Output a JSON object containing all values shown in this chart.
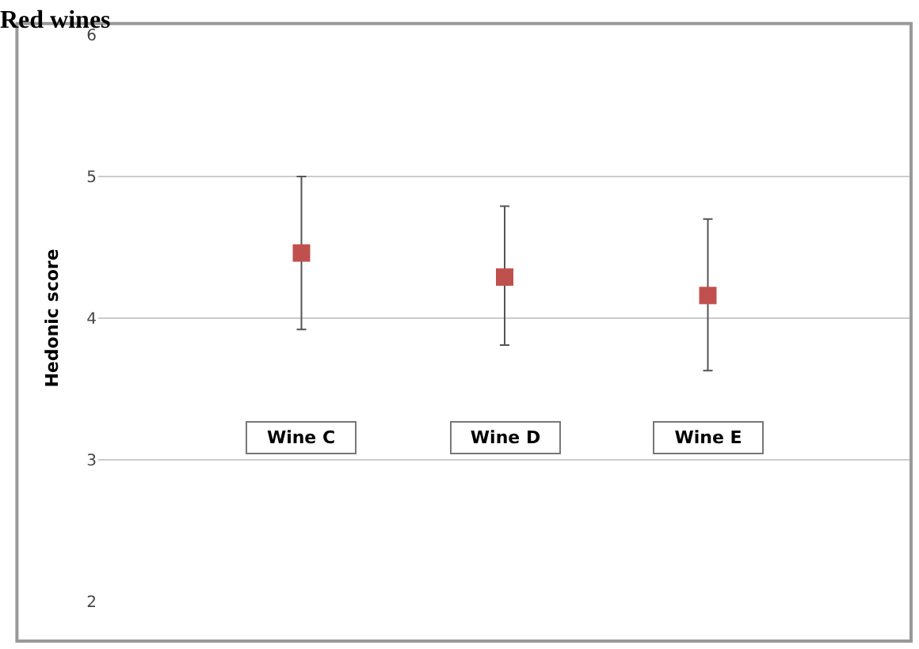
{
  "chart_data": {
    "type": "scatter",
    "title": "Red wines",
    "ylabel": "Hedonic score",
    "categories": [
      "Wine C",
      "Wine D",
      "Wine E"
    ],
    "series": [
      {
        "color": "#c0504d",
        "values": [
          4.46,
          4.29,
          4.16
        ],
        "errors": [
          [
            3.92,
            5.0
          ],
          [
            3.81,
            4.79
          ],
          [
            3.63,
            4.7
          ]
        ]
      }
    ],
    "ylim": [
      2,
      6
    ],
    "yticks": [
      2,
      3,
      4,
      5,
      6
    ],
    "grid": "y",
    "marker": "square",
    "legend": false
  }
}
